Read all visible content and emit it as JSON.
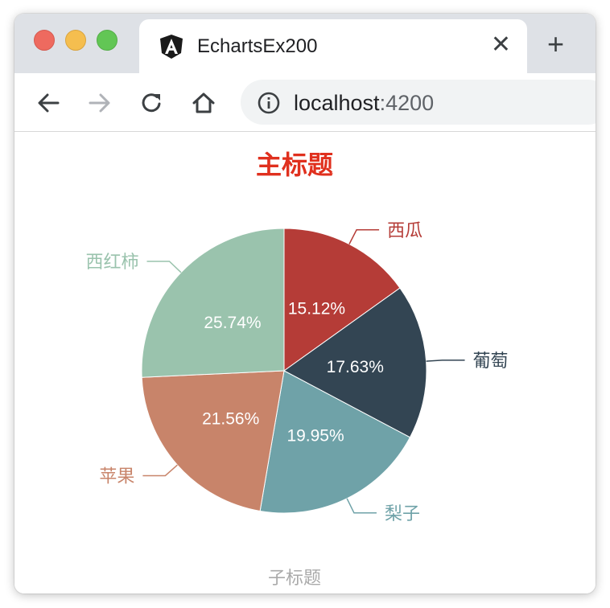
{
  "browser": {
    "tab_title": "EchartsEx200",
    "tab_close_glyph": "✕",
    "new_tab_glyph": "+",
    "url_host": "localhost",
    "url_port": ":4200",
    "icons": [
      "angular-favicon",
      "back-arrow-icon",
      "forward-arrow-icon",
      "reload-icon",
      "home-icon",
      "info-icon"
    ]
  },
  "chart_data": {
    "type": "pie",
    "title": "主标题",
    "subtitle": "子标题",
    "title_color": "#e0301e",
    "subtitle_color": "#aaaaaa",
    "label_format": "percent",
    "slices": [
      {
        "name": "西瓜",
        "percent": "15.12%",
        "value": 15.12,
        "color": "#b53c37"
      },
      {
        "name": "葡萄",
        "percent": "17.63%",
        "value": 17.63,
        "color": "#334553"
      },
      {
        "name": "梨子",
        "percent": "19.95%",
        "value": 19.95,
        "color": "#6fa2a8"
      },
      {
        "name": "苹果",
        "percent": "21.56%",
        "value": 21.56,
        "color": "#c8846a"
      },
      {
        "name": "西红柿",
        "percent": "25.74%",
        "value": 25.74,
        "color": "#9ac3ad"
      }
    ]
  }
}
